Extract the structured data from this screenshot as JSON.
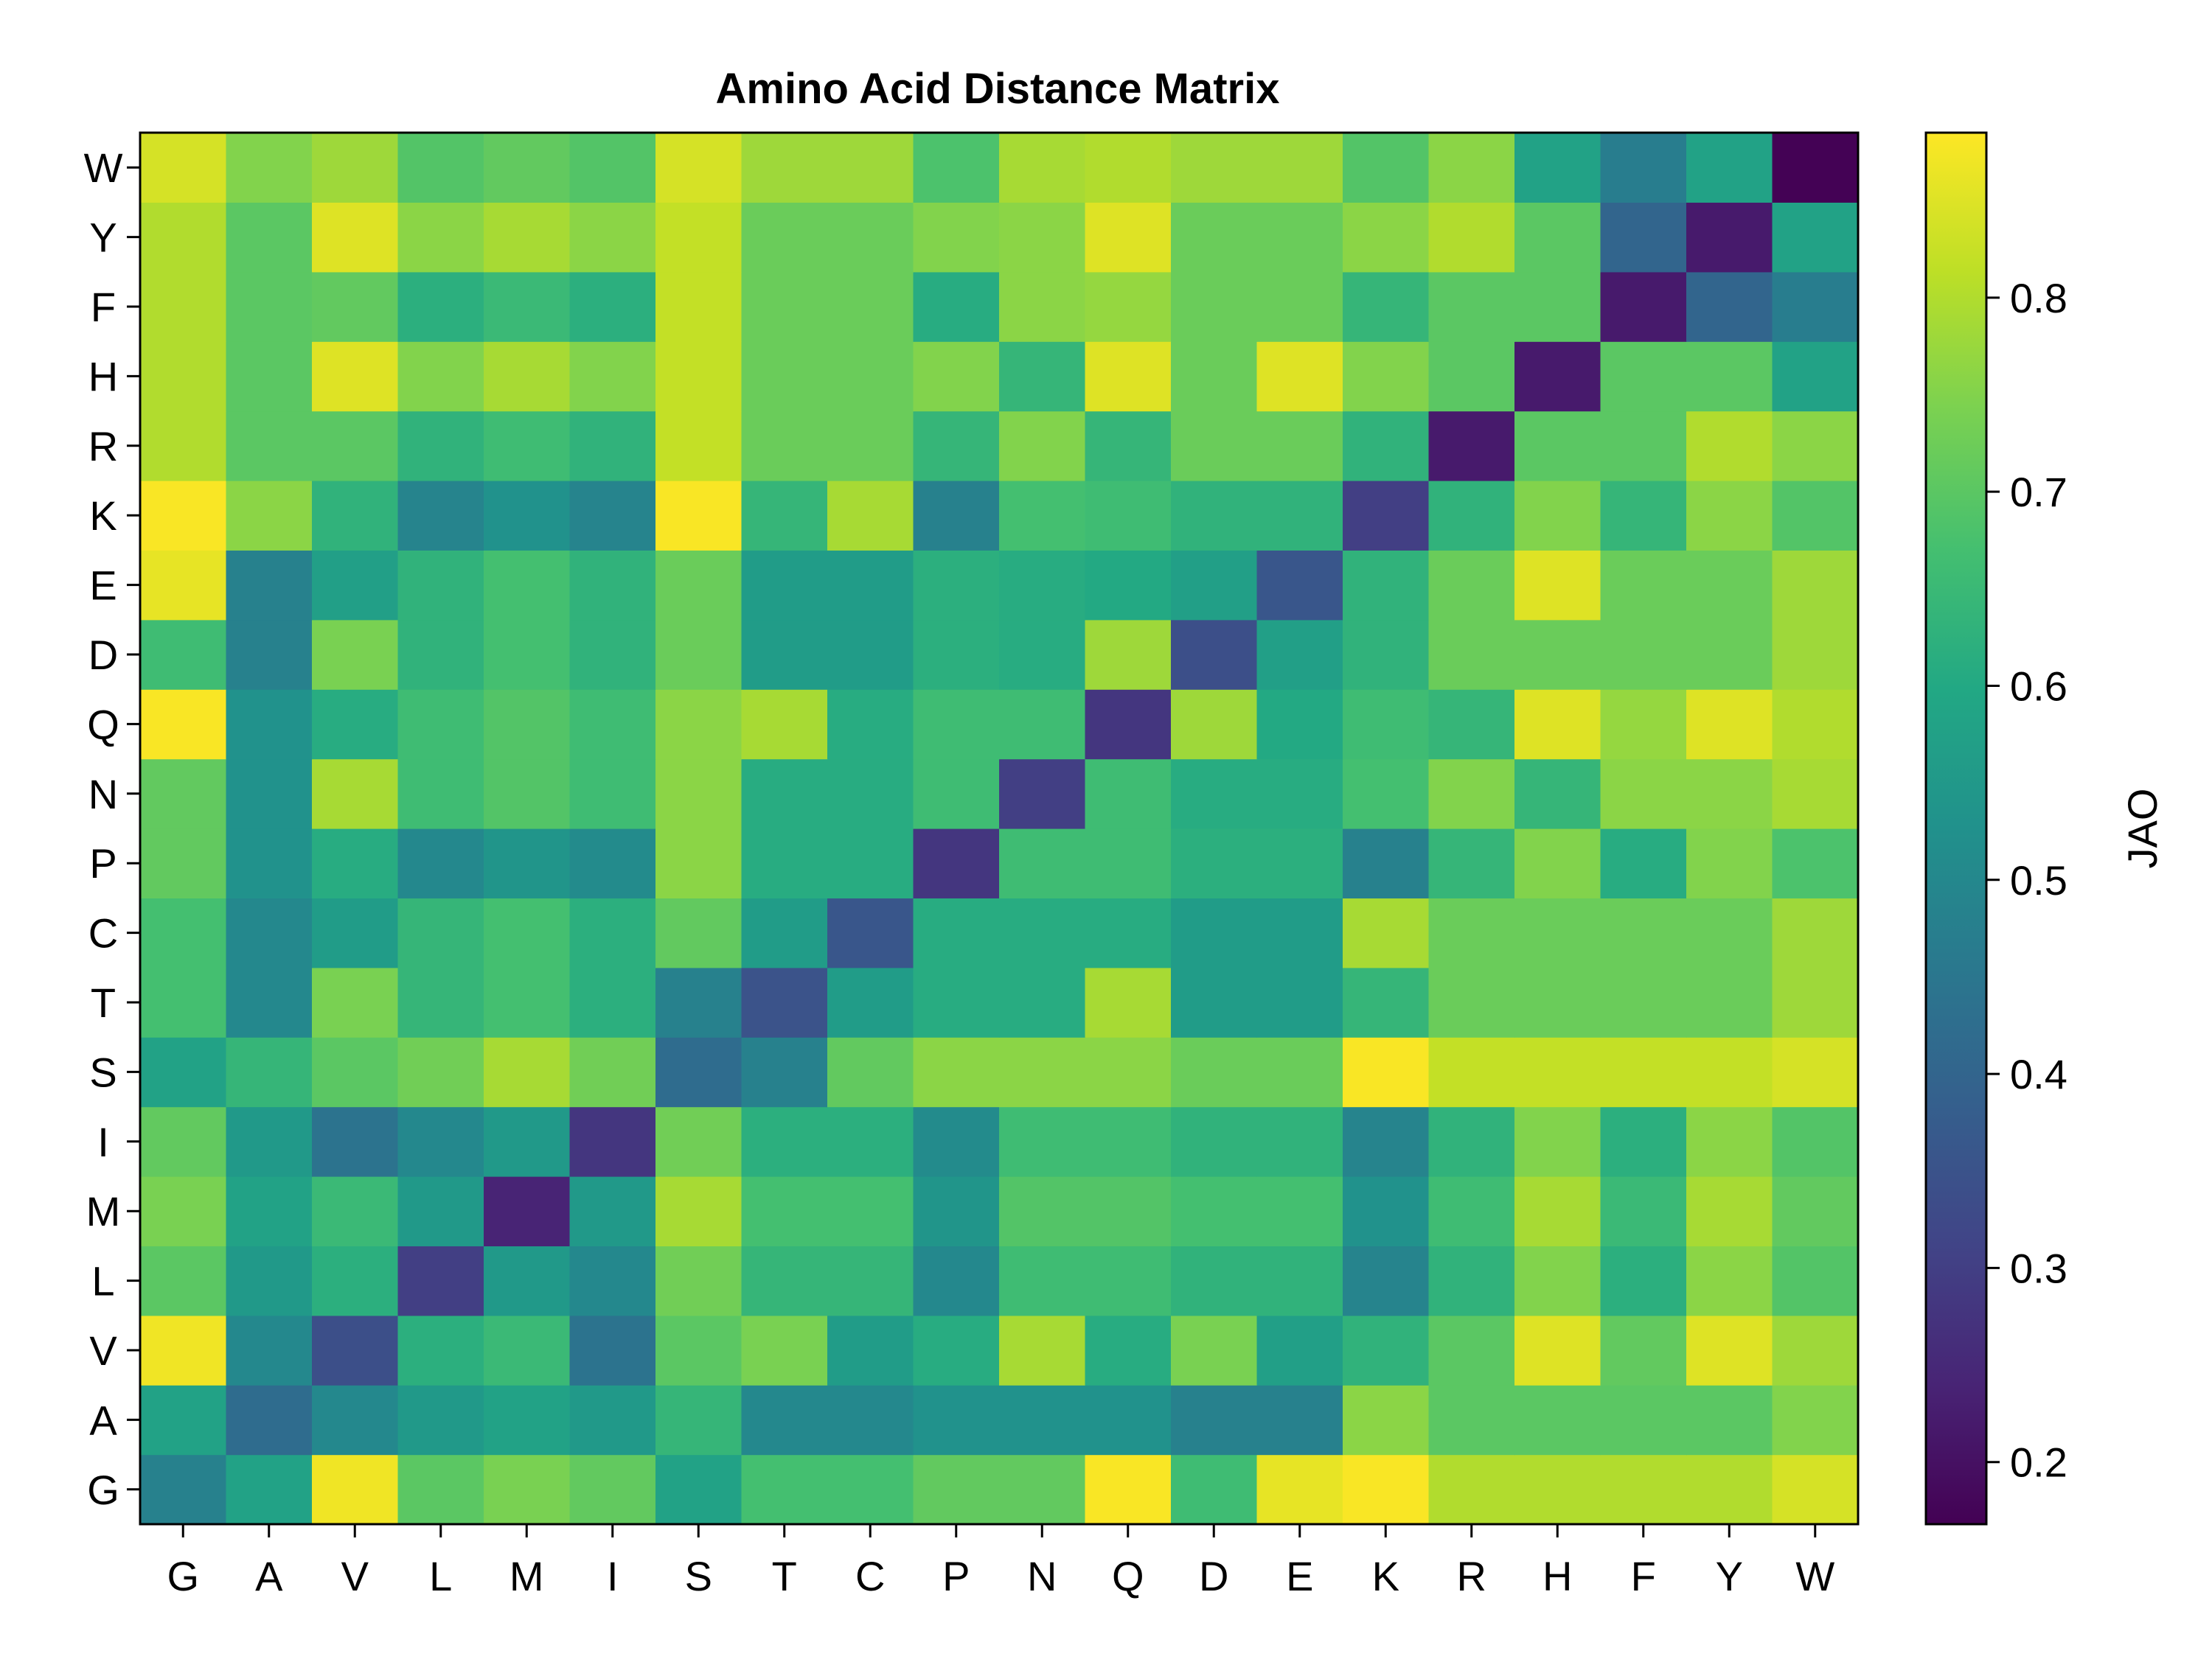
{
  "chart_data": {
    "type": "heatmap",
    "title": "Amino Acid Distance Matrix",
    "x_categories": [
      "G",
      "A",
      "V",
      "L",
      "M",
      "I",
      "S",
      "T",
      "C",
      "P",
      "N",
      "Q",
      "D",
      "E",
      "K",
      "R",
      "H",
      "F",
      "Y",
      "W"
    ],
    "y_categories": [
      "G",
      "A",
      "V",
      "L",
      "M",
      "I",
      "S",
      "T",
      "C",
      "P",
      "N",
      "Q",
      "D",
      "E",
      "K",
      "R",
      "H",
      "F",
      "Y",
      "W"
    ],
    "values": [
      [
        0.48,
        0.58,
        0.87,
        0.7,
        0.74,
        0.71,
        0.58,
        0.67,
        0.67,
        0.71,
        0.71,
        0.88,
        0.66,
        0.86,
        0.88,
        0.8,
        0.8,
        0.8,
        0.8,
        0.84
      ],
      [
        0.58,
        0.42,
        0.5,
        0.55,
        0.58,
        0.55,
        0.64,
        0.5,
        0.5,
        0.53,
        0.53,
        0.53,
        0.48,
        0.48,
        0.76,
        0.7,
        0.7,
        0.7,
        0.7,
        0.75
      ],
      [
        0.87,
        0.5,
        0.34,
        0.62,
        0.65,
        0.44,
        0.7,
        0.74,
        0.56,
        0.61,
        0.79,
        0.61,
        0.74,
        0.57,
        0.63,
        0.7,
        0.85,
        0.71,
        0.85,
        0.78
      ],
      [
        0.7,
        0.55,
        0.62,
        0.3,
        0.55,
        0.5,
        0.73,
        0.64,
        0.64,
        0.5,
        0.66,
        0.66,
        0.63,
        0.63,
        0.49,
        0.63,
        0.75,
        0.62,
        0.76,
        0.69
      ],
      [
        0.74,
        0.58,
        0.65,
        0.55,
        0.24,
        0.55,
        0.79,
        0.67,
        0.67,
        0.54,
        0.69,
        0.69,
        0.67,
        0.67,
        0.53,
        0.66,
        0.79,
        0.65,
        0.79,
        0.71
      ],
      [
        0.71,
        0.55,
        0.44,
        0.5,
        0.55,
        0.28,
        0.73,
        0.62,
        0.62,
        0.51,
        0.66,
        0.66,
        0.63,
        0.63,
        0.49,
        0.63,
        0.75,
        0.62,
        0.76,
        0.69
      ],
      [
        0.58,
        0.64,
        0.7,
        0.73,
        0.79,
        0.73,
        0.42,
        0.48,
        0.71,
        0.76,
        0.76,
        0.76,
        0.72,
        0.72,
        0.88,
        0.82,
        0.82,
        0.82,
        0.82,
        0.84
      ],
      [
        0.67,
        0.5,
        0.74,
        0.64,
        0.67,
        0.62,
        0.48,
        0.35,
        0.56,
        0.61,
        0.61,
        0.79,
        0.56,
        0.56,
        0.64,
        0.72,
        0.72,
        0.72,
        0.72,
        0.78
      ],
      [
        0.67,
        0.5,
        0.56,
        0.64,
        0.67,
        0.62,
        0.71,
        0.56,
        0.36,
        0.61,
        0.61,
        0.61,
        0.56,
        0.56,
        0.79,
        0.72,
        0.72,
        0.72,
        0.72,
        0.78
      ],
      [
        0.71,
        0.53,
        0.61,
        0.5,
        0.54,
        0.51,
        0.76,
        0.61,
        0.61,
        0.28,
        0.66,
        0.66,
        0.62,
        0.62,
        0.48,
        0.64,
        0.75,
        0.61,
        0.75,
        0.68
      ],
      [
        0.71,
        0.53,
        0.79,
        0.66,
        0.69,
        0.66,
        0.76,
        0.61,
        0.61,
        0.66,
        0.3,
        0.66,
        0.61,
        0.61,
        0.67,
        0.75,
        0.64,
        0.76,
        0.76,
        0.79
      ],
      [
        0.88,
        0.53,
        0.61,
        0.66,
        0.69,
        0.66,
        0.76,
        0.79,
        0.61,
        0.66,
        0.66,
        0.28,
        0.78,
        0.6,
        0.66,
        0.64,
        0.85,
        0.77,
        0.85,
        0.8
      ],
      [
        0.66,
        0.48,
        0.74,
        0.63,
        0.67,
        0.63,
        0.72,
        0.56,
        0.56,
        0.62,
        0.61,
        0.78,
        0.34,
        0.57,
        0.63,
        0.72,
        0.72,
        0.72,
        0.72,
        0.78
      ],
      [
        0.86,
        0.48,
        0.57,
        0.63,
        0.67,
        0.63,
        0.72,
        0.56,
        0.56,
        0.62,
        0.61,
        0.6,
        0.57,
        0.36,
        0.63,
        0.72,
        0.85,
        0.72,
        0.72,
        0.78
      ],
      [
        0.88,
        0.76,
        0.63,
        0.49,
        0.53,
        0.49,
        0.88,
        0.64,
        0.79,
        0.48,
        0.67,
        0.66,
        0.63,
        0.63,
        0.3,
        0.63,
        0.75,
        0.64,
        0.76,
        0.69
      ],
      [
        0.8,
        0.7,
        0.7,
        0.63,
        0.66,
        0.63,
        0.82,
        0.72,
        0.72,
        0.64,
        0.75,
        0.64,
        0.72,
        0.72,
        0.63,
        0.22,
        0.7,
        0.7,
        0.8,
        0.76
      ],
      [
        0.8,
        0.7,
        0.85,
        0.75,
        0.79,
        0.75,
        0.82,
        0.72,
        0.72,
        0.75,
        0.64,
        0.85,
        0.72,
        0.85,
        0.75,
        0.7,
        0.22,
        0.7,
        0.7,
        0.58
      ],
      [
        0.8,
        0.7,
        0.71,
        0.62,
        0.65,
        0.62,
        0.82,
        0.72,
        0.72,
        0.61,
        0.76,
        0.77,
        0.72,
        0.72,
        0.64,
        0.7,
        0.7,
        0.22,
        0.4,
        0.47
      ],
      [
        0.8,
        0.7,
        0.85,
        0.76,
        0.79,
        0.76,
        0.82,
        0.72,
        0.72,
        0.75,
        0.76,
        0.85,
        0.72,
        0.72,
        0.76,
        0.8,
        0.7,
        0.4,
        0.22,
        0.58
      ],
      [
        0.84,
        0.75,
        0.78,
        0.69,
        0.71,
        0.69,
        0.84,
        0.78,
        0.78,
        0.68,
        0.79,
        0.8,
        0.78,
        0.78,
        0.69,
        0.76,
        0.58,
        0.47,
        0.58,
        0.17
      ]
    ],
    "colormap": "viridis",
    "vmin": 0.168,
    "vmax": 0.885,
    "colorbar": {
      "label": "JAO",
      "ticks": [
        0.2,
        0.3,
        0.4,
        0.5,
        0.6,
        0.7,
        0.8
      ],
      "tick_labels": [
        "0.2",
        "0.3",
        "0.4",
        "0.5",
        "0.6",
        "0.7",
        "0.8"
      ]
    },
    "grid": false,
    "legend": false
  }
}
